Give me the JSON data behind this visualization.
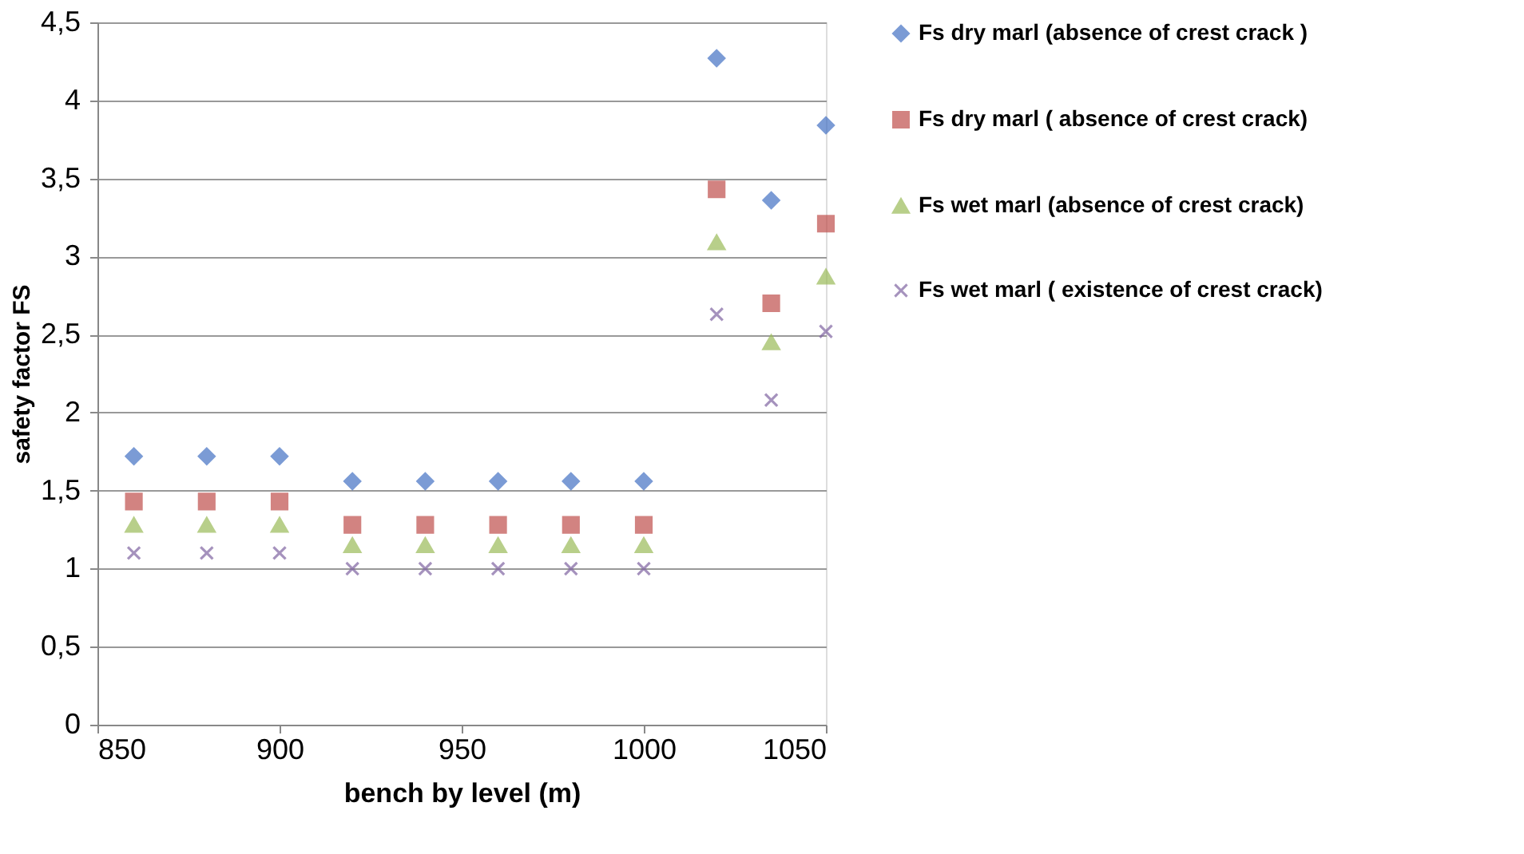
{
  "chart_data": {
    "type": "scatter",
    "xlabel": "bench by level (m)",
    "ylabel": "safety factor  FS",
    "x": [
      860,
      880,
      900,
      920,
      940,
      960,
      980,
      1000,
      1020,
      1035,
      1050
    ],
    "series": [
      {
        "name": "Fs dry marl (absence of crest crack )",
        "color": "#4472c4",
        "marker": "diamond",
        "values": [
          1.72,
          1.72,
          1.72,
          1.56,
          1.56,
          1.56,
          1.56,
          1.56,
          4.27,
          3.36,
          3.84
        ]
      },
      {
        "name": "Fs  dry marl ( absence of crest crack)",
        "color": "#c0504d",
        "marker": "square",
        "values": [
          1.43,
          1.43,
          1.43,
          1.28,
          1.28,
          1.28,
          1.28,
          1.28,
          3.43,
          2.7,
          3.21
        ]
      },
      {
        "name": "Fs wet marl (absence of crest crack)",
        "color": "#9bbb59",
        "marker": "triangle",
        "values": [
          1.28,
          1.28,
          1.28,
          1.15,
          1.15,
          1.15,
          1.15,
          1.15,
          3.09,
          2.45,
          2.87
        ]
      },
      {
        "name": "Fs wet marl ( existence  of crest crack)",
        "color": "#8064a2",
        "marker": "cross",
        "values": [
          1.1,
          1.1,
          1.1,
          1.0,
          1.0,
          1.0,
          1.0,
          1.0,
          2.63,
          2.08,
          2.52
        ]
      }
    ],
    "xlim": [
      850,
      1050
    ],
    "xticks": [
      850,
      900,
      950,
      1000,
      1050
    ],
    "ylim": [
      0,
      4.5
    ],
    "yticks": [
      0,
      {
        "value": 0.5,
        "label": "0,5"
      },
      1,
      {
        "value": 1.5,
        "label": "1,5"
      },
      2,
      {
        "value": 2.5,
        "label": "2,5"
      },
      3,
      {
        "value": 3.5,
        "label": "3,5"
      },
      4,
      {
        "value": 4.5,
        "label": "4,5"
      }
    ],
    "grid": "y",
    "legend": "right"
  }
}
